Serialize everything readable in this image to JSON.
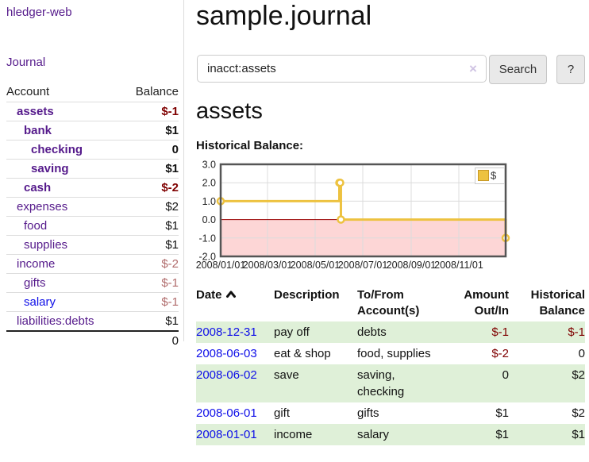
{
  "app": {
    "title": "hledger-web"
  },
  "sidebar": {
    "nav": {
      "journal": "Journal"
    },
    "accounts": {
      "col_account": "Account",
      "col_balance": "Balance",
      "rows": [
        {
          "name": "assets",
          "balance": "$-1"
        },
        {
          "name": "bank",
          "balance": "$1"
        },
        {
          "name": "checking",
          "balance": "0"
        },
        {
          "name": "saving",
          "balance": "$1"
        },
        {
          "name": "cash",
          "balance": "$-2"
        },
        {
          "name": "expenses",
          "balance": "$2"
        },
        {
          "name": "food",
          "balance": "$1"
        },
        {
          "name": "supplies",
          "balance": "$1"
        },
        {
          "name": "income",
          "balance": "$-2"
        },
        {
          "name": "gifts",
          "balance": "$-1"
        },
        {
          "name": "salary",
          "balance": "$-1"
        },
        {
          "name": "liabilities:debts",
          "balance": "$1"
        }
      ],
      "total": "0"
    }
  },
  "main": {
    "title": "sample.journal",
    "search": {
      "value": "inacct:assets",
      "clear_icon": "×",
      "button": "Search",
      "help": "?"
    },
    "section_heading": "assets",
    "chart_label": "Historical Balance:"
  },
  "chart_data": {
    "type": "line",
    "step": true,
    "title": "Historical Balance:",
    "series": [
      {
        "name": "$",
        "color": "#EDC240",
        "points": [
          [
            "2008-01-01",
            1
          ],
          [
            "2008-06-01",
            2
          ],
          [
            "2008-06-02",
            2
          ],
          [
            "2008-06-03",
            0
          ],
          [
            "2008-12-31",
            -1
          ]
        ]
      }
    ],
    "x_range": [
      "2008-01-01",
      "2008-12-31"
    ],
    "ylim": [
      -2,
      3
    ],
    "y_ticks": [
      3,
      2,
      1,
      0,
      -1,
      -2
    ],
    "y_tick_labels": [
      "3.0",
      "2.0",
      "1.0",
      "0.0",
      "-1.0",
      "-2.0"
    ],
    "x_ticks": [
      "2008-01-01",
      "2008-03-01",
      "2008-05-01",
      "2008-07-01",
      "2008-09-01",
      "2008-11-01"
    ],
    "x_tick_labels": [
      "2008/01/01",
      "2008/03/01",
      "2008/05/01",
      "2008/07/01",
      "2008/09/01",
      "2008/11/01"
    ],
    "legend": {
      "label": "$",
      "position": "ne"
    },
    "grid": true,
    "negative_fill": "#fdd6d6",
    "zero_line_color": "#990000"
  },
  "register": {
    "headers": {
      "date": "Date",
      "description": "Description",
      "tofrom_line1": "To/From",
      "tofrom_line2": "Account(s)",
      "amount_line1": "Amount",
      "amount_line2": "Out/In",
      "balance_line1": "Historical",
      "balance_line2": "Balance"
    },
    "rows": [
      {
        "date": "2008-12-31",
        "description": "pay off",
        "accounts": "debts",
        "amount": "$-1",
        "balance": "$-1"
      },
      {
        "date": "2008-06-03",
        "description": "eat & shop",
        "accounts": "food, supplies",
        "amount": "$-2",
        "balance": "0"
      },
      {
        "date": "2008-06-02",
        "description": "save",
        "accounts": "saving, checking",
        "amount": "0",
        "balance": "$2"
      },
      {
        "date": "2008-06-01",
        "description": "gift",
        "accounts": "gifts",
        "amount": "$1",
        "balance": "$2"
      },
      {
        "date": "2008-01-01",
        "description": "income",
        "accounts": "salary",
        "amount": "$1",
        "balance": "$1"
      }
    ]
  },
  "colors": {
    "link_purple": "#551a8b",
    "link_blue": "#0f0fe8",
    "negative": "#7f0000",
    "negative_dim": "#b06b6b",
    "row_green": "#dff0d8",
    "chart_line": "#EDC240",
    "chart_negative_fill": "#fdd6d6",
    "chart_zero_line": "#990000"
  }
}
